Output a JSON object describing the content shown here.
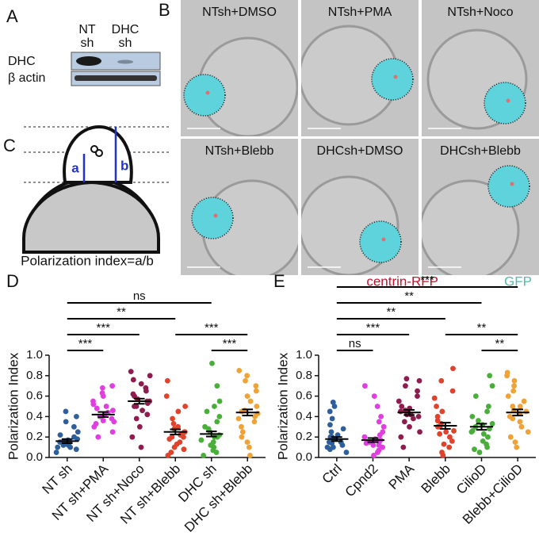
{
  "panel_a": {
    "letter": "A",
    "header_nt_1": "NT",
    "header_nt_2": "sh",
    "header_dhc_1": "DHC",
    "header_dhc_2": "sh",
    "rows": [
      "DHC",
      "β actin"
    ]
  },
  "panel_b": {
    "letter": "B",
    "images": [
      "NTsh+DMSO",
      "NTsh+PMA",
      "NTsh+Noco",
      "NTsh+Blebb",
      "DHCsh+DMSO",
      "DHCsh+Blebb"
    ],
    "legend": [
      "centrin-RFP",
      "GFP"
    ],
    "legend_colors": [
      "#c8102e",
      "#4fbfae"
    ]
  },
  "panel_c": {
    "letter": "C",
    "a": "a",
    "b": "b",
    "caption": "Polarization index=a/b"
  },
  "chart_data": [
    {
      "type": "dotplot",
      "letter": "D",
      "ylabel": "Polarization Index",
      "ylim": [
        0,
        1.0
      ],
      "yticks": [
        {
          "value": 0,
          "label": "0.0"
        },
        {
          "value": 0.2,
          "label": "0.2"
        },
        {
          "value": 0.4,
          "label": "0.4"
        },
        {
          "value": 0.6,
          "label": "0.6"
        },
        {
          "value": 0.8,
          "label": "0.8"
        },
        {
          "value": 1.0,
          "label": "1.0"
        }
      ],
      "categories": [
        "NT sh",
        "NT sh+PMA",
        "NT sh+Noco",
        "NT sh+Blebb",
        "DHC sh",
        "DHC sh+Blebb"
      ],
      "colors": [
        "#2e5f9a",
        "#e03ee0",
        "#8e1c4f",
        "#e0432c",
        "#4aae3a",
        "#f0a236"
      ],
      "points": [
        [
          0.05,
          0.08,
          0.1,
          0.12,
          0.13,
          0.14,
          0.15,
          0.15,
          0.16,
          0.17,
          0.18,
          0.2,
          0.22,
          0.25,
          0.3,
          0.35,
          0.4,
          0.45,
          0.1,
          0.12
        ],
        [
          0.2,
          0.25,
          0.3,
          0.33,
          0.36,
          0.38,
          0.4,
          0.42,
          0.44,
          0.46,
          0.48,
          0.5,
          0.52,
          0.55,
          0.6,
          0.63,
          0.68,
          0.7,
          0.4,
          0.35
        ],
        [
          0.1,
          0.2,
          0.3,
          0.38,
          0.42,
          0.46,
          0.5,
          0.53,
          0.55,
          0.57,
          0.6,
          0.62,
          0.65,
          0.68,
          0.72,
          0.76,
          0.8,
          0.84,
          0.55,
          0.5
        ],
        [
          0.02,
          0.05,
          0.08,
          0.1,
          0.13,
          0.15,
          0.18,
          0.2,
          0.22,
          0.25,
          0.28,
          0.3,
          0.33,
          0.38,
          0.45,
          0.5,
          0.6,
          0.75,
          0.2,
          0.25
        ],
        [
          0.02,
          0.05,
          0.07,
          0.1,
          0.12,
          0.15,
          0.17,
          0.2,
          0.22,
          0.25,
          0.28,
          0.3,
          0.35,
          0.4,
          0.45,
          0.5,
          0.55,
          0.7,
          0.92,
          0.2
        ],
        [
          0.02,
          0.1,
          0.15,
          0.2,
          0.25,
          0.3,
          0.35,
          0.4,
          0.43,
          0.46,
          0.5,
          0.55,
          0.6,
          0.65,
          0.7,
          0.75,
          0.8,
          0.85,
          0.45,
          0.38
        ]
      ],
      "means": [
        0.16,
        0.42,
        0.55,
        0.25,
        0.23,
        0.44
      ],
      "sems": [
        0.02,
        0.025,
        0.025,
        0.025,
        0.025,
        0.03
      ],
      "comparisons": [
        {
          "from": 0,
          "to": 1,
          "label": "***"
        },
        {
          "from": 4,
          "to": 5,
          "label": "***"
        },
        {
          "from": 0,
          "to": 2,
          "label": "***"
        },
        {
          "from": 3,
          "to": 5,
          "label": "***"
        },
        {
          "from": 0,
          "to": 3,
          "label": "**"
        },
        {
          "from": 0,
          "to": 4,
          "label": "ns"
        }
      ]
    },
    {
      "type": "dotplot",
      "letter": "E",
      "ylabel": "Polarization Index",
      "ylim": [
        0,
        1.0
      ],
      "yticks": [
        {
          "value": 0,
          "label": "0.0"
        },
        {
          "value": 0.2,
          "label": "0.2"
        },
        {
          "value": 0.4,
          "label": "0.4"
        },
        {
          "value": 0.6,
          "label": "0.6"
        },
        {
          "value": 0.8,
          "label": "0.8"
        },
        {
          "value": 1.0,
          "label": "1.0"
        }
      ],
      "categories": [
        "Ctrl",
        "Cpnd2",
        "PMA",
        "Blebb",
        "CilioD",
        "Blebb+CilioD"
      ],
      "colors": [
        "#2e5f9a",
        "#e03ee0",
        "#8e1c4f",
        "#e0432c",
        "#4aae3a",
        "#f0a236"
      ],
      "points": [
        [
          0.05,
          0.08,
          0.1,
          0.12,
          0.14,
          0.15,
          0.17,
          0.18,
          0.2,
          0.22,
          0.25,
          0.28,
          0.32,
          0.38,
          0.45,
          0.5,
          0.54,
          0.15,
          0.2,
          0.1
        ],
        [
          0.02,
          0.05,
          0.07,
          0.1,
          0.12,
          0.14,
          0.15,
          0.17,
          0.18,
          0.2,
          0.22,
          0.25,
          0.3,
          0.35,
          0.4,
          0.5,
          0.6,
          0.7,
          0.12,
          0.15
        ],
        [
          0.1,
          0.2,
          0.25,
          0.3,
          0.35,
          0.38,
          0.42,
          0.44,
          0.46,
          0.48,
          0.5,
          0.55,
          0.6,
          0.65,
          0.7,
          0.75,
          0.77,
          0.45,
          0.4,
          0.42
        ],
        [
          0.02,
          0.05,
          0.1,
          0.13,
          0.16,
          0.2,
          0.23,
          0.26,
          0.3,
          0.33,
          0.36,
          0.4,
          0.45,
          0.5,
          0.58,
          0.65,
          0.75,
          0.87,
          0.3,
          0.25
        ],
        [
          0.05,
          0.08,
          0.1,
          0.13,
          0.16,
          0.2,
          0.23,
          0.26,
          0.3,
          0.33,
          0.36,
          0.4,
          0.45,
          0.5,
          0.6,
          0.7,
          0.8,
          0.28,
          0.25,
          0.32
        ],
        [
          0.1,
          0.15,
          0.2,
          0.25,
          0.3,
          0.35,
          0.4,
          0.43,
          0.46,
          0.5,
          0.55,
          0.6,
          0.65,
          0.7,
          0.75,
          0.8,
          0.83,
          0.45,
          0.38,
          0.5
        ]
      ],
      "means": [
        0.18,
        0.17,
        0.44,
        0.31,
        0.3,
        0.44
      ],
      "sems": [
        0.02,
        0.02,
        0.025,
        0.03,
        0.03,
        0.03
      ],
      "comparisons": [
        {
          "from": 0,
          "to": 1,
          "label": "ns"
        },
        {
          "from": 4,
          "to": 5,
          "label": "**"
        },
        {
          "from": 0,
          "to": 2,
          "label": "***"
        },
        {
          "from": 3,
          "to": 5,
          "label": "**"
        },
        {
          "from": 0,
          "to": 3,
          "label": "**"
        },
        {
          "from": 0,
          "to": 4,
          "label": "**"
        },
        {
          "from": 0,
          "to": 5,
          "label": "***"
        }
      ]
    }
  ]
}
